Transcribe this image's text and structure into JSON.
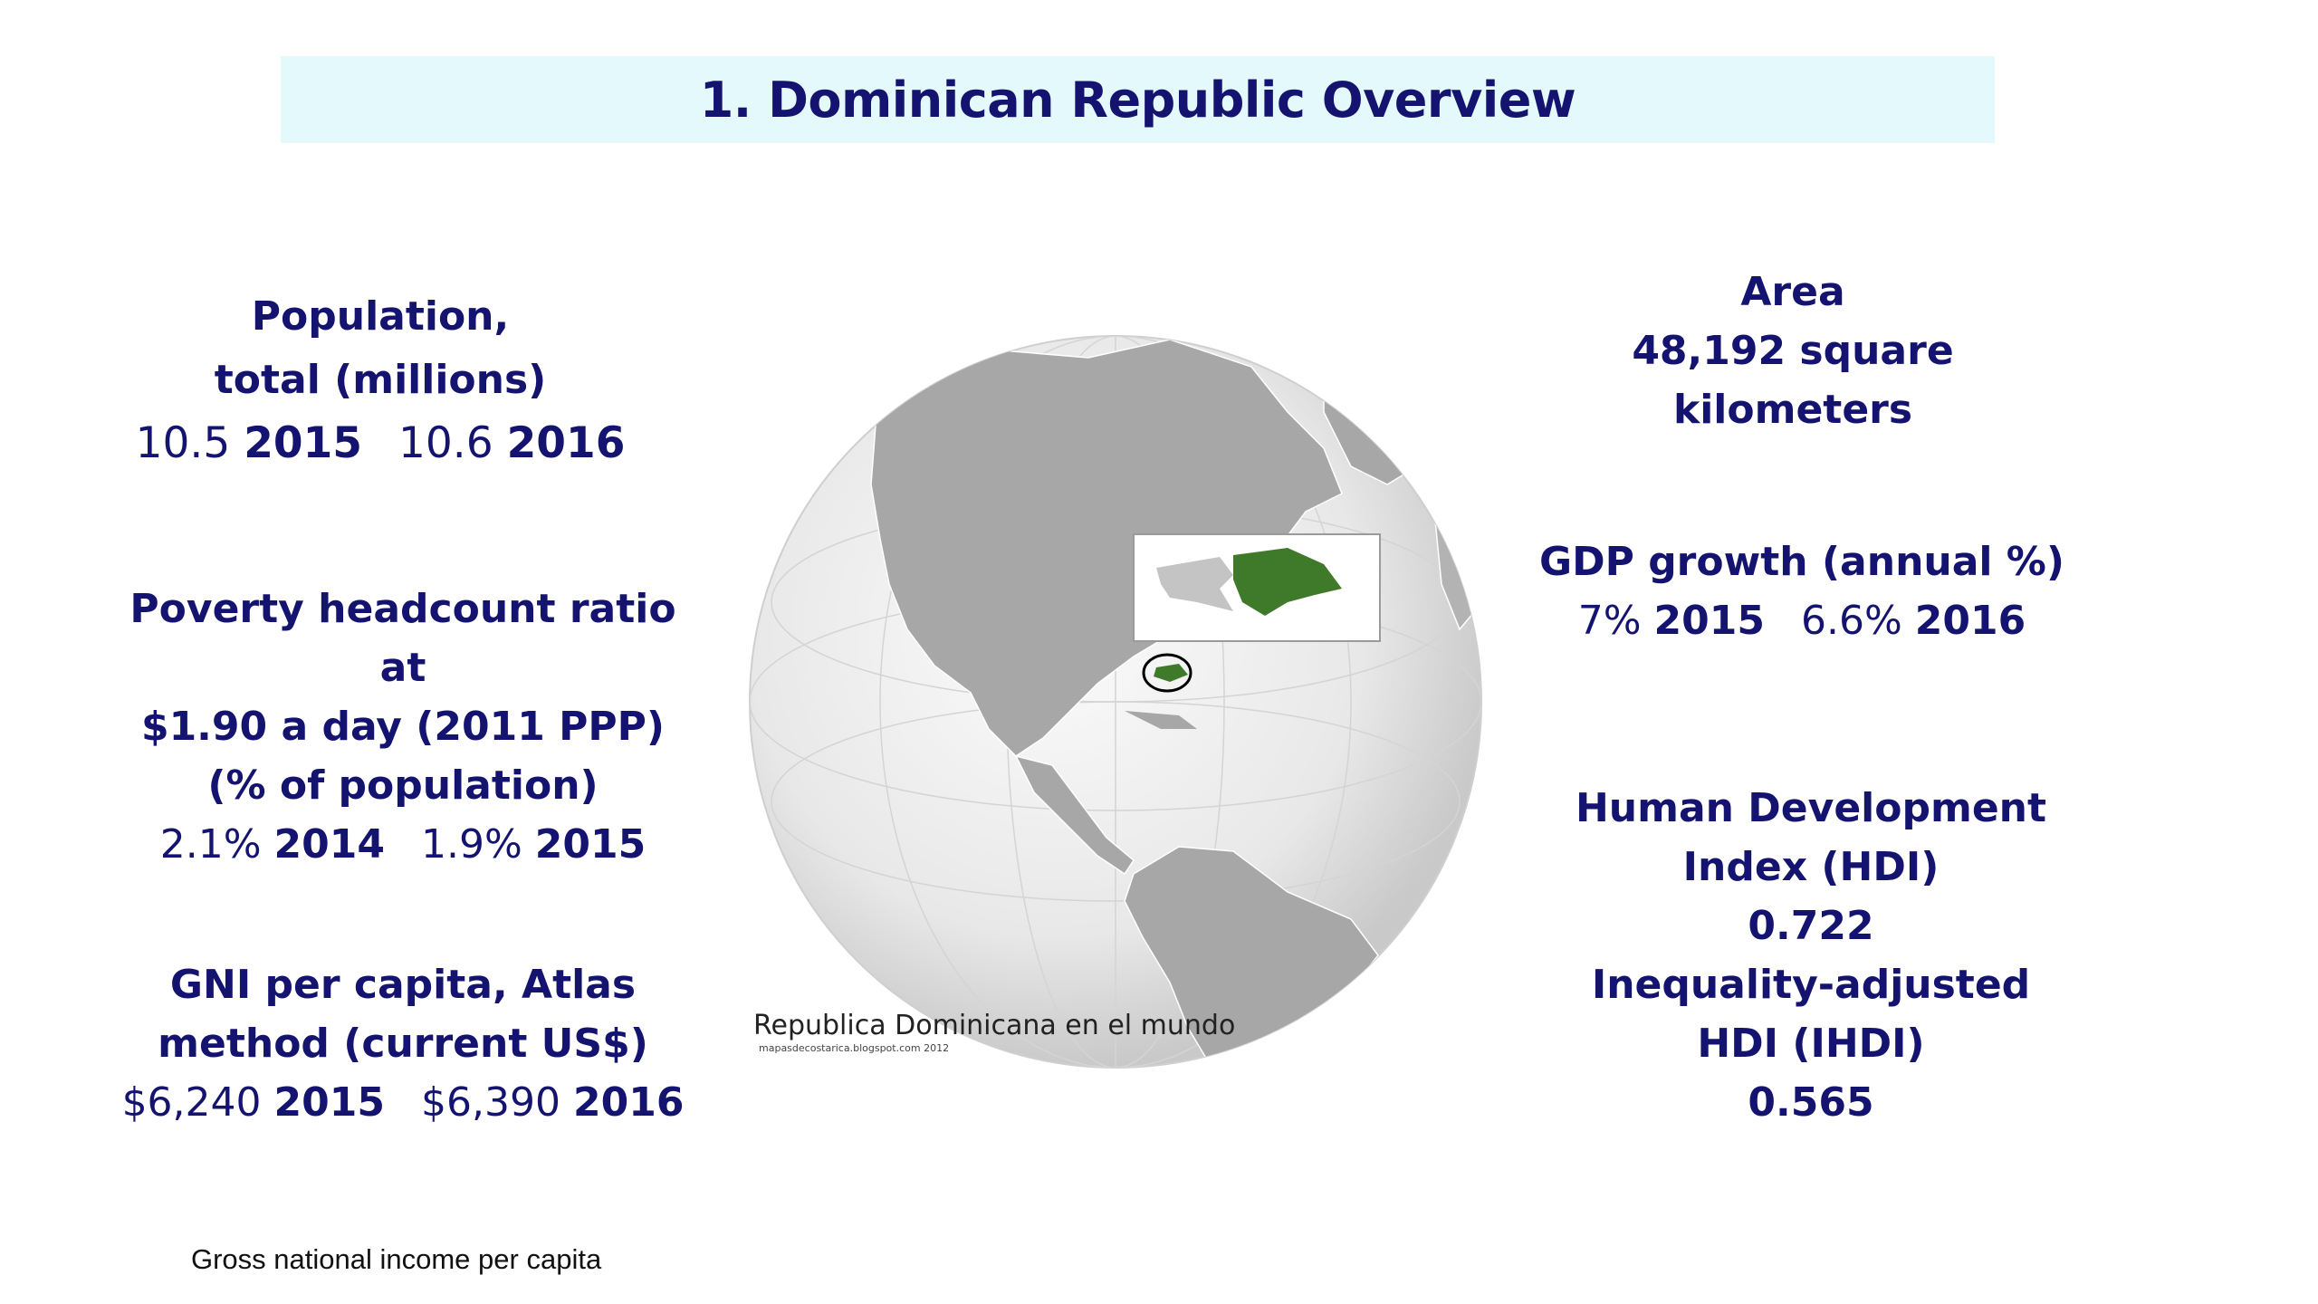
{
  "title": "1. Dominican Republic Overview",
  "population": {
    "label_line1": "Population,",
    "label_line2": "total (millions)",
    "v1": "10.5",
    "y1": "2015",
    "v2": "10.6",
    "y2": "2016"
  },
  "poverty": {
    "label_line1": "Poverty headcount ratio at",
    "label_line2": "$1.90 a day (2011 PPP)",
    "label_line3": "(% of population)",
    "v1": "2.1%",
    "y1": "2014",
    "v2": "1.9%",
    "y2": "2015"
  },
  "gni": {
    "label_line1": "GNI per capita, Atlas",
    "label_line2": "method (current US$)",
    "v1": "$6,240",
    "y1": "2015",
    "v2": "$6,390",
    "y2": "2016"
  },
  "area": {
    "label": "Area",
    "value_line1": "48,192 square",
    "value_line2": "kilometers"
  },
  "gdp": {
    "label": "GDP growth (annual %)",
    "v1": "7%",
    "y1": "2015",
    "v2": "6.6%",
    "y2": "2016"
  },
  "hdi": {
    "label_line1": "Human Development",
    "label_line2": "Index (HDI)",
    "value": "0.722",
    "ihdi_line1": "Inequality-adjusted",
    "ihdi_line2": "HDI (IHDI)",
    "ihdi_value": "0.565"
  },
  "map": {
    "caption": "Republica Dominicana en el mundo",
    "credit": "mapasdecostarica.blogspot.com 2012",
    "highlight_color": "#3f7a2a"
  },
  "footnote": "Gross national income per capita"
}
